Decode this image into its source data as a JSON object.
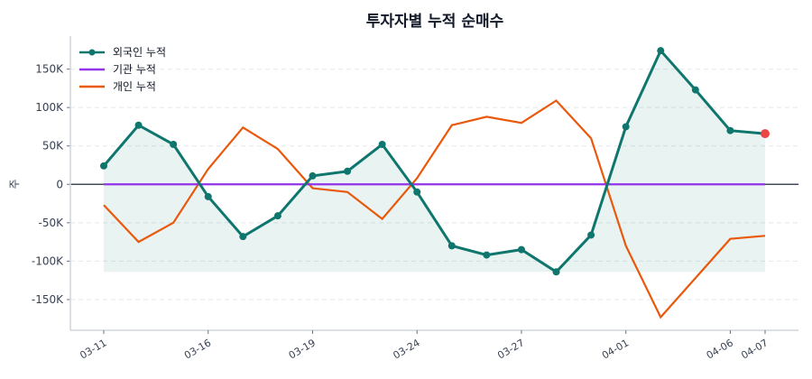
{
  "chart_data": {
    "type": "line",
    "title": "투자자별 누적 순매수",
    "ylabel": "주",
    "xlabel": "",
    "x": [
      "03-11",
      "03-12",
      "03-13",
      "03-16",
      "03-17",
      "03-18",
      "03-19",
      "03-20",
      "03-23",
      "03-24",
      "03-25",
      "03-26",
      "03-27",
      "03-30",
      "03-31",
      "04-01",
      "04-02",
      "04-03",
      "04-06",
      "04-07"
    ],
    "xticks": [
      "03-11",
      "03-16",
      "03-19",
      "03-24",
      "03-27",
      "04-01",
      "04-06",
      "04-07"
    ],
    "yticks": [
      -150000,
      -100000,
      -50000,
      0,
      50000,
      100000,
      150000
    ],
    "ytick_labels": [
      "-150K",
      "-100K",
      "-50K",
      "0",
      "50K",
      "100K",
      "150K"
    ],
    "ylim": [
      -190000,
      193000
    ],
    "grid": "horizontal dashed",
    "legend": "top-left",
    "series": [
      {
        "name": "외국인 누적",
        "color": "#0f766e",
        "markers": true,
        "fill": true,
        "values": [
          24000,
          77000,
          52000,
          -16000,
          -68000,
          -41000,
          11000,
          17000,
          52000,
          -10000,
          -80000,
          -92000,
          -85000,
          -114000,
          -66000,
          75000,
          174000,
          123000,
          70000,
          66000
        ]
      },
      {
        "name": "기관 누적",
        "color": "#9333ea",
        "markers": false,
        "values": [
          0,
          0,
          0,
          0,
          0,
          0,
          0,
          0,
          0,
          0,
          0,
          0,
          0,
          0,
          0,
          0,
          0,
          0,
          0,
          0
        ]
      },
      {
        "name": "개인 누적",
        "color": "#ea580c",
        "markers": false,
        "values": [
          -27000,
          -75000,
          -50000,
          20000,
          74000,
          46000,
          -5000,
          -10000,
          -45000,
          8000,
          77000,
          88000,
          80000,
          109000,
          60000,
          -80000,
          -173000,
          -122000,
          -71000,
          -67000
        ]
      }
    ],
    "last_point_color": "#ef4444"
  }
}
